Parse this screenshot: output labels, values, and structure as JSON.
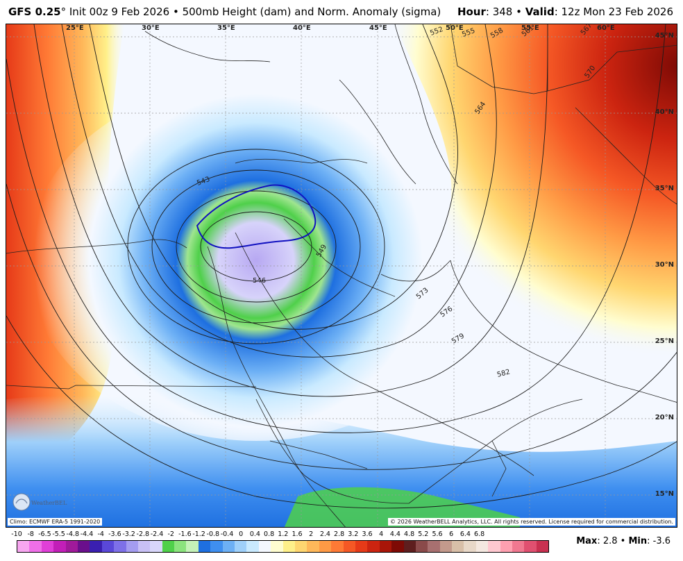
{
  "header": {
    "model": "GFS 0.25",
    "degree": "°",
    "init": "Init 00z 9 Feb 2026",
    "bullet": "•",
    "product": "500mb Height (dam) and Norm. Anomaly (sigma)",
    "hour_label": "Hour",
    "hour_value": ": 348",
    "valid_label": "Valid",
    "valid_value": ": 12z Mon 23 Feb 2026"
  },
  "map": {
    "longitude_labels": [
      "25°E",
      "30°E",
      "35°E",
      "40°E",
      "45°E",
      "50°E",
      "55°E",
      "60°E"
    ],
    "latitude_labels": [
      "45°N",
      "40°N",
      "35°N",
      "30°N",
      "25°N",
      "20°N",
      "15°N"
    ],
    "contour_labels": [
      "543",
      "546",
      "549",
      "552",
      "555",
      "558",
      "561",
      "564",
      "570",
      "573",
      "576",
      "579",
      "582",
      "567"
    ],
    "climo_note": "Climo: ECMWF ERA-5 1991-2020",
    "copyright": "© 2026 WeatherBELL Analytics, LLC. All rights reserved. License required for commercial distribution.",
    "logo": "WeatherBELL"
  },
  "legend": {
    "labels": [
      "-10",
      "-8",
      "-6.5",
      "-5.5",
      "-4.8",
      "-4.4",
      "-4",
      "-3.6",
      "-3.2",
      "-2.8",
      "-2.4",
      "-2",
      "-1.6",
      "-1.2",
      "-0.8",
      "-0.4",
      "0",
      "0.4",
      "0.8",
      "1.2",
      "1.6",
      "2",
      "2.4",
      "2.8",
      "3.2",
      "3.6",
      "4",
      "4.4",
      "4.8",
      "5.2",
      "5.6",
      "6",
      "6.4",
      "6.8"
    ],
    "colors": [
      "#f7a6f0",
      "#ef6fe8",
      "#e03fd8",
      "#c21fb8",
      "#a01a9a",
      "#6a0f8c",
      "#3a1fb0",
      "#5a48d8",
      "#7e70e8",
      "#a49cf0",
      "#c8c0f5",
      "#d8d6fa",
      "#4fd04a",
      "#8be37d",
      "#c5f2b8",
      "#1e6fe0",
      "#3f8ff0",
      "#6db0f5",
      "#9fd0fa",
      "#c9eaff",
      "#f4f8ff",
      "#fffdd0",
      "#fff08a",
      "#ffd670",
      "#ffb85a",
      "#ff9a45",
      "#ff7a35",
      "#f55825",
      "#e63a18",
      "#cc2410",
      "#a81508",
      "#7e0a05",
      "#5e1e1e",
      "#8a4a4a",
      "#a87070",
      "#c39a8c",
      "#d8bfa8",
      "#e8d8c8",
      "#f4e8e0",
      "#ffc8d0",
      "#ffa0b0",
      "#f07890",
      "#e05070",
      "#c83050"
    ]
  },
  "stats": {
    "max_label": "Max",
    "max_value": ": 2.8",
    "min_label": "Min",
    "min_value": ": -3.6",
    "bullet": "•"
  }
}
